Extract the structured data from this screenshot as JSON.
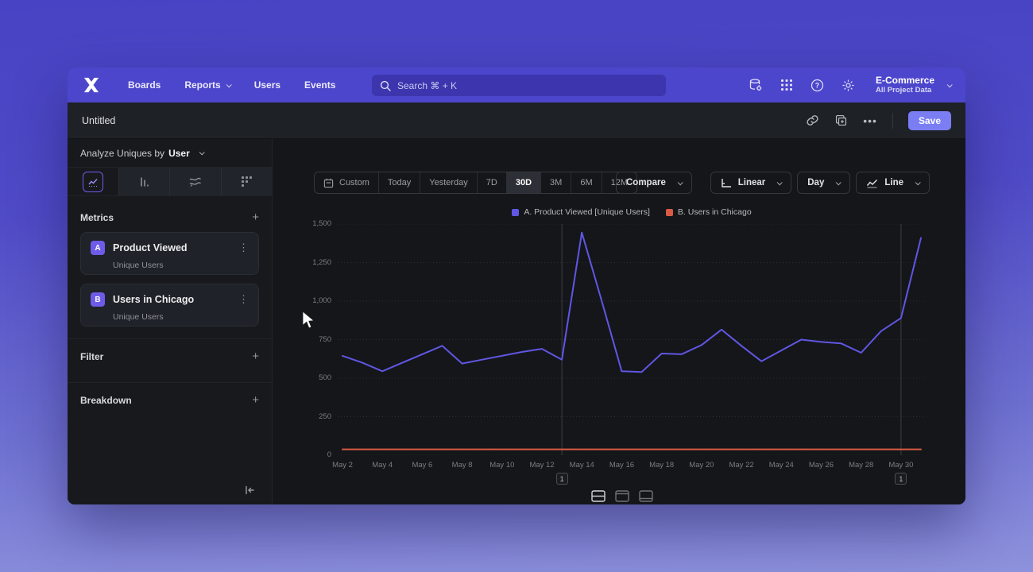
{
  "nav": {
    "items": [
      {
        "label": "Boards",
        "dropdown": false
      },
      {
        "label": "Reports",
        "dropdown": true
      },
      {
        "label": "Users",
        "dropdown": false
      },
      {
        "label": "Events",
        "dropdown": false
      }
    ],
    "search_placeholder": "Search  ⌘ + K",
    "project": {
      "name": "E-Commerce",
      "subtitle": "All Project Data"
    }
  },
  "header": {
    "title": "Untitled",
    "save_label": "Save"
  },
  "sidebar": {
    "analyze_prefix": "Analyze Uniques by",
    "analyze_value": "User",
    "metrics_title": "Metrics",
    "add_label": "+",
    "metrics": [
      {
        "badge": "A",
        "name": "Product Viewed",
        "subtitle": "Unique Users"
      },
      {
        "badge": "B",
        "name": "Users in Chicago",
        "subtitle": "Unique Users"
      }
    ],
    "sections": [
      {
        "title": "Filter"
      },
      {
        "title": "Breakdown"
      }
    ]
  },
  "controls": {
    "date_ranges": [
      "Custom",
      "Today",
      "Yesterday",
      "7D",
      "30D",
      "3M",
      "6M",
      "12M"
    ],
    "selected_range": "30D",
    "compare_label": "Compare",
    "scale_label": "Linear",
    "interval_label": "Day",
    "chart_type_label": "Line"
  },
  "chart_data": {
    "type": "line",
    "x": [
      "May 2",
      "May 3",
      "May 4",
      "May 5",
      "May 6",
      "May 7",
      "May 8",
      "May 9",
      "May 10",
      "May 11",
      "May 12",
      "May 13",
      "May 14",
      "May 15",
      "May 16",
      "May 17",
      "May 18",
      "May 19",
      "May 20",
      "May 21",
      "May 22",
      "May 23",
      "May 24",
      "May 25",
      "May 26",
      "May 27",
      "May 28",
      "May 29",
      "May 30",
      "May 31"
    ],
    "series": [
      {
        "name": "A. Product Viewed [Unique Users]",
        "color": "#6156e4",
        "values": [
          645,
          600,
          545,
          600,
          655,
          710,
          595,
          620,
          645,
          670,
          690,
          620,
          1445,
          1000,
          545,
          540,
          660,
          655,
          715,
          815,
          710,
          610,
          680,
          750,
          735,
          725,
          665,
          805,
          890,
          1410
        ]
      },
      {
        "name": "B. Users in Chicago",
        "color": "#d95b45",
        "values": [
          38,
          38,
          38,
          38,
          38,
          38,
          38,
          38,
          38,
          38,
          38,
          38,
          38,
          38,
          38,
          38,
          38,
          38,
          38,
          38,
          38,
          38,
          38,
          38,
          38,
          38,
          38,
          38,
          38,
          38
        ]
      }
    ],
    "ylim": [
      0,
      1500
    ],
    "yticks": [
      0,
      250,
      500,
      750,
      1000,
      1250,
      1500
    ],
    "ytick_labels": [
      "0",
      "250",
      "500",
      "750",
      "1,000",
      "1,250",
      "1,500"
    ],
    "xtick_every": 2,
    "annotations": [
      {
        "index": 11,
        "label": "1"
      },
      {
        "index": 28,
        "label": "1"
      }
    ],
    "grid": true,
    "legend_position": "top-center"
  },
  "icons": {
    "logo": "x-mark",
    "search": "magnifier",
    "data_settings": "database-gear",
    "apps": "grid-dots",
    "help": "question-circle",
    "settings": "gear",
    "share": "link",
    "duplicate": "copy-plus",
    "more": "ellipsis",
    "collapse": "arrow-to-bar-left",
    "chart_tabs": [
      "line-chart",
      "bar-chart",
      "flow",
      "funnel-dots"
    ],
    "view_toggles": [
      "split-rows",
      "panel-top",
      "panel-bottom"
    ]
  }
}
